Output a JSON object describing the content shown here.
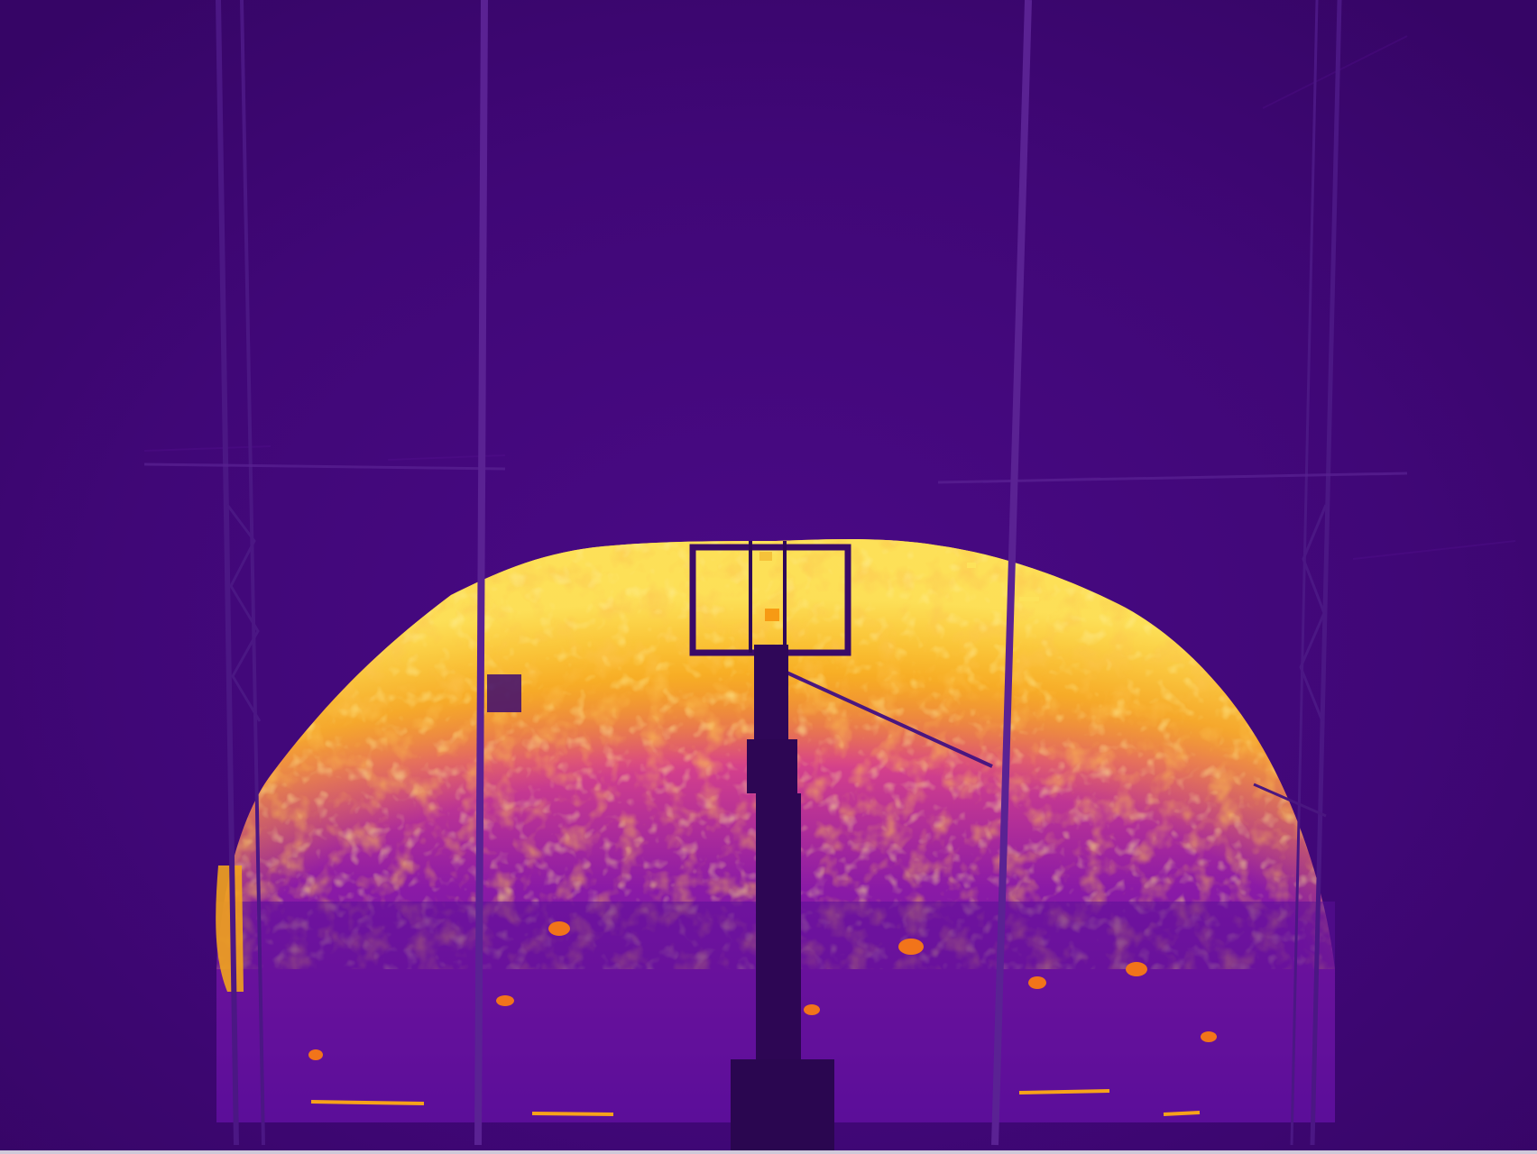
{
  "image": {
    "kind": "thermal-infrared-photo",
    "palette": "inferno",
    "colors": {
      "background": "#3f0676",
      "background_dark": "#360566",
      "cool": "#5a0d9a",
      "mid": "#a21ea8",
      "warm": "#e8511f",
      "hot": "#f79a14",
      "hottest": "#fde25a",
      "structure": "#2f0758"
    }
  }
}
